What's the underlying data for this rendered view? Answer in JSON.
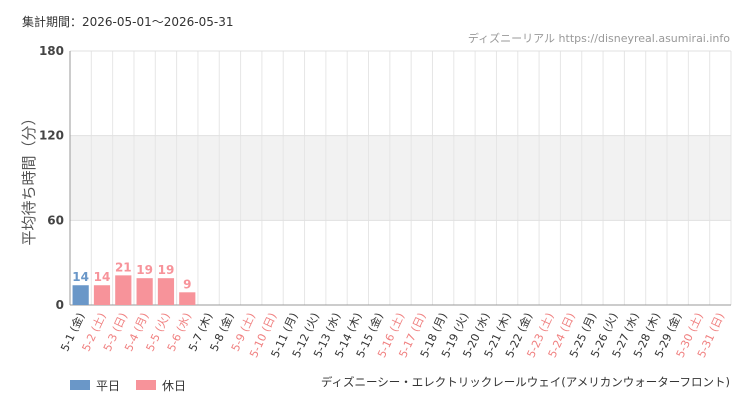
{
  "chart_data": {
    "type": "bar",
    "period": "集計期間：2026-05-01〜2026-05-31",
    "source": "ディズニーリアル https://disneyreal.asumirai.info",
    "y_label": "平均待ち時間（分）",
    "attraction": "ディズニーシー・エレクトリックレールウェイ(アメリカンウォーターフロント)",
    "categories": [
      "5-1 (金)",
      "5-2 (土)",
      "5-3 (日)",
      "5-4 (月)",
      "5-5 (火)",
      "5-6 (水)",
      "5-7 (木)",
      "5-8 (金)",
      "5-9 (土)",
      "5-10 (日)",
      "5-11 (月)",
      "5-12 (火)",
      "5-13 (水)",
      "5-14 (木)",
      "5-15 (金)",
      "5-16 (土)",
      "5-17 (日)",
      "5-18 (月)",
      "5-19 (火)",
      "5-20 (水)",
      "5-21 (木)",
      "5-22 (金)",
      "5-23 (土)",
      "5-24 (日)",
      "5-25 (月)",
      "5-26 (火)",
      "5-27 (水)",
      "5-28 (木)",
      "5-29 (金)",
      "5-30 (土)",
      "5-31 (日)"
    ],
    "category_colors": [
      "#333",
      "#f08080",
      "#f08080",
      "#f08080",
      "#f08080",
      "#f08080",
      "#333",
      "#333",
      "#f08080",
      "#f08080",
      "#333",
      "#333",
      "#333",
      "#333",
      "#333",
      "#f08080",
      "#f08080",
      "#333",
      "#333",
      "#333",
      "#333",
      "#333",
      "#f08080",
      "#f08080",
      "#333",
      "#333",
      "#333",
      "#333",
      "#333",
      "#f08080",
      "#f08080"
    ],
    "series": [
      {
        "name": "平日",
        "color": "#6a97c8",
        "values": [
          14,
          null,
          null,
          null,
          null,
          null,
          null,
          null,
          null,
          null,
          null,
          null,
          null,
          null,
          null,
          null,
          null,
          null,
          null,
          null,
          null,
          null,
          null,
          null,
          null,
          null,
          null,
          null,
          null,
          null,
          null
        ]
      },
      {
        "name": "休日",
        "color": "#f7939a",
        "values": [
          null,
          14,
          21,
          19,
          19,
          9,
          null,
          null,
          null,
          null,
          null,
          null,
          null,
          null,
          null,
          null,
          null,
          null,
          null,
          null,
          null,
          null,
          null,
          null,
          null,
          null,
          null,
          null,
          null,
          null,
          null
        ]
      }
    ],
    "ylim": [
      0,
      180
    ],
    "yticks": [
      0,
      60,
      120,
      180
    ],
    "grid": true
  }
}
